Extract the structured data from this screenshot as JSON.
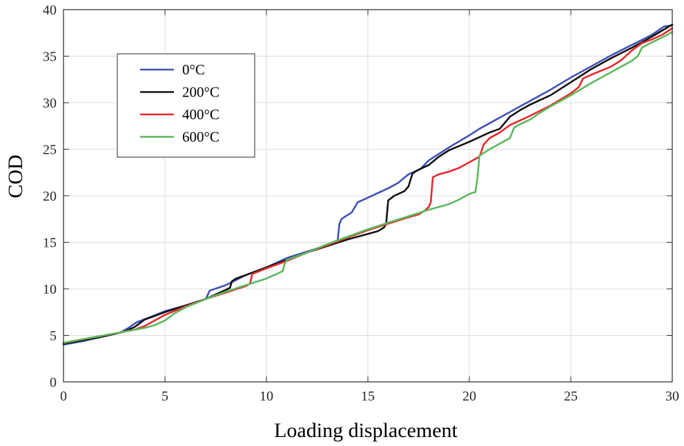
{
  "chart_data": {
    "type": "line",
    "title": "",
    "xlabel": "Loading displacement",
    "ylabel": "COD",
    "xlim": [
      0,
      30
    ],
    "ylim": [
      0,
      40
    ],
    "xticks": [
      0,
      5,
      10,
      15,
      20,
      25,
      30
    ],
    "yticks": [
      0,
      5,
      10,
      15,
      20,
      25,
      30,
      35,
      40
    ],
    "grid": true,
    "legend_position": "top-left",
    "series": [
      {
        "name": "0°C",
        "color": "#3f51b5",
        "x": [
          0,
          1,
          2,
          2.8,
          3.2,
          3.6,
          4.2,
          5,
          6,
          7,
          7.1,
          7.2,
          8,
          9,
          10,
          11,
          12,
          13,
          13.5,
          13.6,
          13.7,
          13.9,
          14.2,
          14.5,
          14.8,
          15,
          16,
          16.5,
          17,
          17.6,
          18,
          19,
          20,
          20.5,
          21,
          22,
          23,
          24,
          25,
          26,
          27,
          28,
          29,
          29.6,
          30
        ],
        "y": [
          4.0,
          4.4,
          4.9,
          5.3,
          5.8,
          6.4,
          6.9,
          7.6,
          8.2,
          8.9,
          9.3,
          9.8,
          10.4,
          11.5,
          12.3,
          13.3,
          14.0,
          14.7,
          15.0,
          17.0,
          17.5,
          17.8,
          18.2,
          19.3,
          19.6,
          19.8,
          20.8,
          21.4,
          22.3,
          22.9,
          23.8,
          25.2,
          26.5,
          27.2,
          27.8,
          29.0,
          30.2,
          31.4,
          32.7,
          33.9,
          35.1,
          36.2,
          37.3,
          38.2,
          38.3
        ]
      },
      {
        "name": "200°C",
        "color": "#111111",
        "x": [
          0,
          1,
          2,
          3,
          3.5,
          4,
          5,
          6,
          7,
          8,
          8.2,
          8.3,
          8.5,
          9,
          10,
          11,
          12,
          13,
          14,
          15,
          15.5,
          15.8,
          15.9,
          16.0,
          16.3,
          16.8,
          17.0,
          17.2,
          17.5,
          18,
          18.5,
          19,
          20,
          21,
          21.5,
          22,
          22.5,
          23,
          24,
          25,
          26,
          27,
          28,
          29,
          30
        ],
        "y": [
          4.1,
          4.5,
          4.9,
          5.4,
          5.9,
          6.7,
          7.5,
          8.2,
          8.9,
          9.9,
          10.1,
          10.8,
          11.1,
          11.5,
          12.3,
          13.1,
          13.9,
          14.6,
          15.3,
          15.9,
          16.2,
          16.6,
          17.0,
          19.5,
          20.0,
          20.5,
          21.0,
          22.4,
          22.8,
          23.3,
          24.2,
          24.9,
          25.8,
          26.8,
          27.2,
          28.5,
          29.2,
          29.8,
          30.8,
          32.2,
          33.6,
          34.8,
          35.9,
          37.1,
          38.4
        ]
      },
      {
        "name": "400°C",
        "color": "#e8282b",
        "x": [
          0,
          1,
          2,
          3,
          3.5,
          4,
          4.5,
          5,
          6,
          7,
          8,
          9,
          9.2,
          9.3,
          10,
          11,
          12,
          13,
          14,
          15,
          16,
          17,
          17.5,
          17.8,
          18.0,
          18.1,
          18.2,
          18.5,
          19,
          19.5,
          20,
          20.5,
          20.6,
          20.7,
          21,
          21.5,
          22,
          23,
          24,
          25,
          25.4,
          25.6,
          26,
          27,
          27.5,
          28,
          28.5,
          29,
          29.5,
          30
        ],
        "y": [
          4.2,
          4.6,
          5.0,
          5.4,
          5.6,
          6.0,
          6.6,
          7.2,
          8.1,
          8.9,
          9.6,
          10.3,
          10.6,
          11.6,
          12.2,
          13.0,
          13.9,
          14.7,
          15.5,
          16.3,
          17.0,
          17.7,
          18.0,
          18.4,
          18.8,
          19.3,
          22.0,
          22.3,
          22.6,
          23.0,
          23.6,
          24.2,
          24.8,
          25.5,
          26.2,
          26.8,
          27.6,
          28.6,
          29.7,
          31.0,
          31.7,
          32.6,
          33.0,
          33.9,
          34.6,
          35.6,
          36.4,
          36.8,
          37.3,
          38.0
        ]
      },
      {
        "name": "600°C",
        "color": "#5cb85c",
        "x": [
          0,
          1,
          2,
          3,
          4,
          4.5,
          5,
          5.5,
          6,
          7,
          8,
          9,
          10,
          10.5,
          10.8,
          10.9,
          11,
          12,
          13,
          14,
          15,
          16,
          17,
          18,
          19,
          19.5,
          20,
          20.3,
          20.4,
          20.5,
          21,
          21.5,
          22,
          22.2,
          22.5,
          23,
          23.4,
          24,
          25,
          26,
          27,
          28,
          28.3,
          28.5,
          29,
          29.5,
          30
        ],
        "y": [
          4.2,
          4.6,
          5.0,
          5.4,
          5.8,
          6.1,
          6.6,
          7.4,
          8.0,
          8.9,
          9.7,
          10.4,
          11.1,
          11.6,
          11.9,
          12.7,
          13.1,
          13.9,
          14.8,
          15.6,
          16.4,
          17.1,
          17.8,
          18.5,
          19.1,
          19.6,
          20.2,
          20.4,
          22.0,
          24.3,
          25.0,
          25.6,
          26.2,
          27.3,
          27.7,
          28.2,
          28.8,
          29.6,
          30.8,
          32.1,
          33.3,
          34.5,
          35.0,
          35.9,
          36.5,
          37.0,
          37.6
        ]
      }
    ]
  }
}
